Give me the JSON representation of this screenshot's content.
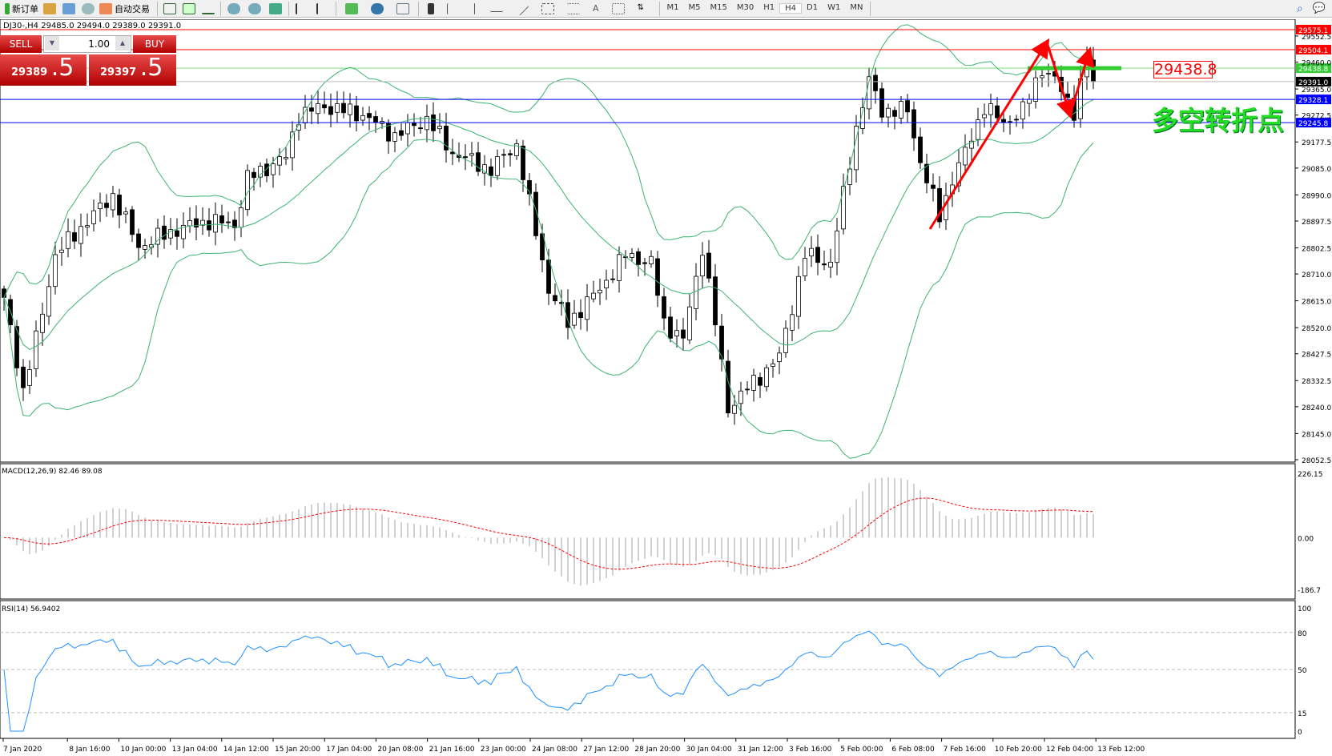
{
  "toolbar": {
    "new_order": "新订单",
    "auto_trading": "自动交易",
    "timeframes": [
      "M1",
      "M5",
      "M15",
      "M30",
      "H1",
      "H4",
      "D1",
      "W1",
      "MN"
    ],
    "active_timeframe": "H4"
  },
  "chart_title": "DJ30-,H4  29485.0 29494.0 29389.0 29391.0",
  "trade_panel": {
    "sell_label": "SELL",
    "buy_label": "BUY",
    "lot": "1.00",
    "sell_big": "29389",
    "sell_small": ".5",
    "buy_big": "29397",
    "buy_small": ".5"
  },
  "annotations": {
    "box_label": "29438.8",
    "cn_text": "多空转折点"
  },
  "colors": {
    "bull": "#ffffff",
    "bear": "#000000",
    "bands": "#3cb371",
    "macd_hist": "#c0c0c0",
    "macd_signal": "#ff0000",
    "rsi": "#1e90ff",
    "arrow": "#ff0000",
    "sell_buy": "#d01010"
  },
  "chart_data": {
    "type": "candlestick",
    "symbol": "DJ30-",
    "timeframe": "H4",
    "ylim": [
      28052.5,
      29575.1
    ],
    "y_ticks": [
      "29552.5",
      "29460.0",
      "29365.0",
      "29272.5",
      "29177.5",
      "29085.0",
      "28990.0",
      "28897.5",
      "28802.5",
      "28710.0",
      "28615.0",
      "28520.0",
      "28427.5",
      "28332.5",
      "28240.0",
      "28145.0",
      "28052.5"
    ],
    "x_ticks": [
      "7 Jan 2020",
      "8 Jan 16:00",
      "10 Jan 00:00",
      "13 Jan 04:00",
      "14 Jan 12:00",
      "15 Jan 20:00",
      "17 Jan 04:00",
      "20 Jan 08:00",
      "21 Jan 16:00",
      "23 Jan 00:00",
      "24 Jan 08:00",
      "27 Jan 12:00",
      "28 Jan 20:00",
      "30 Jan 04:00",
      "31 Jan 12:00",
      "3 Feb 16:00",
      "5 Feb 00:00",
      "6 Feb 08:00",
      "7 Feb 16:00",
      "10 Feb 20:00",
      "12 Feb 04:00",
      "13 Feb 12:00"
    ],
    "close_keypoints_bar_price": [
      [
        0,
        28627
      ],
      [
        3,
        28296
      ],
      [
        5,
        28477
      ],
      [
        8,
        28778
      ],
      [
        13,
        28898
      ],
      [
        17,
        28988
      ],
      [
        21,
        28808
      ],
      [
        27,
        28868
      ],
      [
        32,
        28898
      ],
      [
        36,
        28883
      ],
      [
        38,
        29048
      ],
      [
        44,
        29124
      ],
      [
        46,
        29274
      ],
      [
        50,
        29304
      ],
      [
        56,
        29274
      ],
      [
        61,
        29199
      ],
      [
        66,
        29259
      ],
      [
        70,
        29139
      ],
      [
        76,
        29079
      ],
      [
        80,
        29169
      ],
      [
        82,
        28958
      ],
      [
        85,
        28657
      ],
      [
        88,
        28537
      ],
      [
        93,
        28657
      ],
      [
        97,
        28778
      ],
      [
        101,
        28748
      ],
      [
        103,
        28537
      ],
      [
        106,
        28477
      ],
      [
        109,
        28808
      ],
      [
        111,
        28537
      ],
      [
        113,
        28236
      ],
      [
        117,
        28326
      ],
      [
        121,
        28417
      ],
      [
        123,
        28597
      ],
      [
        125,
        28778
      ],
      [
        129,
        28748
      ],
      [
        131,
        28988
      ],
      [
        133,
        29229
      ],
      [
        135,
        29394
      ],
      [
        137,
        29289
      ],
      [
        141,
        29289
      ],
      [
        143,
        29109
      ],
      [
        146,
        28913
      ],
      [
        148,
        29048
      ],
      [
        150,
        29139
      ],
      [
        153,
        29304
      ],
      [
        156,
        29244
      ],
      [
        159,
        29289
      ],
      [
        162,
        29440
      ],
      [
        164,
        29394
      ],
      [
        167,
        29289
      ],
      [
        169,
        29470
      ],
      [
        170,
        29391
      ]
    ],
    "last_ohlc": {
      "open": 29485.0,
      "high": 29494.0,
      "low": 29389.0,
      "close": 29391.0
    },
    "price_lines": [
      {
        "value": "29575.1",
        "color": "#ff0000"
      },
      {
        "value": "29504.1",
        "color": "#ff0000"
      },
      {
        "value": "29438.8",
        "color": "#33cc33"
      },
      {
        "value": "29391.0",
        "color": "#000000"
      },
      {
        "value": "29328.1",
        "color": "#0000ff"
      },
      {
        "value": "29245.8",
        "color": "#0000ff"
      }
    ],
    "indicators": {
      "bollinger": {
        "period": 20,
        "deviation": 2
      },
      "macd": {
        "label": "MACD(12,26,9) 82.46 89.08",
        "ticks": [
          "226.15",
          "0.00",
          "-186.7"
        ],
        "ylim": [
          -186.7,
          226.15
        ]
      },
      "rsi": {
        "label": "RSI(14) 56.9402",
        "ticks": [
          "100",
          "80",
          "50",
          "15",
          "0"
        ],
        "levels": [
          80,
          50,
          15
        ]
      }
    }
  }
}
